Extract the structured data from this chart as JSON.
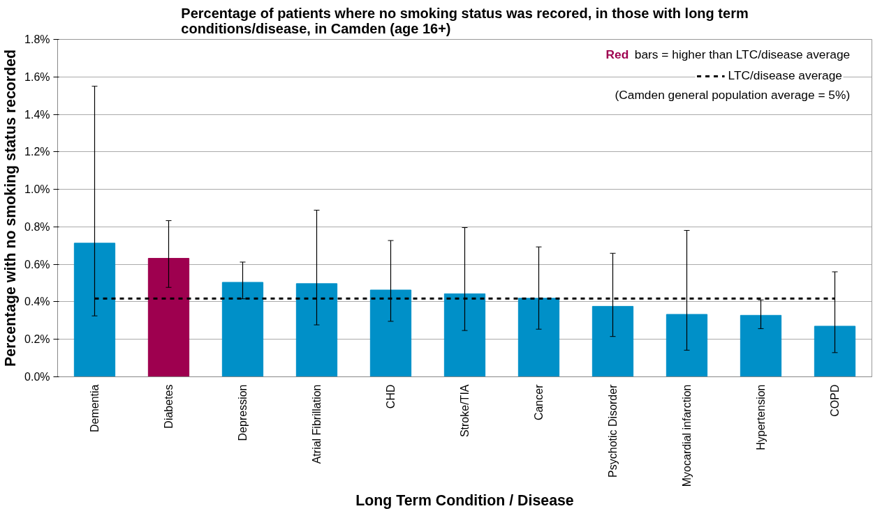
{
  "chart_data": {
    "type": "bar",
    "title": "Percentage of patients where no smoking status was recored, in those with long term conditions/disease, in Camden (age 16+)",
    "xlabel": "Long Term Condition / Disease",
    "ylabel": "Percentage with no smoking status recorded",
    "categories": [
      "Dementia",
      "Diabetes",
      "Depression",
      "Atrial Fibrillation",
      "CHD",
      "Stroke/TIA",
      "Cancer",
      "Psychotic Disorder",
      "Myocardial infarction",
      "Hypertension",
      "COPD"
    ],
    "values": [
      0.713,
      0.632,
      0.504,
      0.497,
      0.463,
      0.443,
      0.419,
      0.376,
      0.333,
      0.328,
      0.27
    ],
    "colors": [
      "#0090c8",
      "#9e004f",
      "#0090c8",
      "#0090c8",
      "#0090c8",
      "#0090c8",
      "#0090c8",
      "#0090c8",
      "#0090c8",
      "#0090c8",
      "#0090c8"
    ],
    "errors": [
      [
        0.325,
        1.55
      ],
      [
        0.477,
        0.833
      ],
      [
        0.416,
        0.612
      ],
      [
        0.277,
        0.889
      ],
      [
        0.296,
        0.727
      ],
      [
        0.247,
        0.796
      ],
      [
        0.254,
        0.693
      ],
      [
        0.215,
        0.659
      ],
      [
        0.142,
        0.781
      ],
      [
        0.257,
        0.41
      ],
      [
        0.129,
        0.56
      ]
    ],
    "ylim": [
      0,
      1.8
    ],
    "yticks": [
      {
        "value": 0,
        "label": "0.0%"
      },
      {
        "value": 0.2,
        "label": "0.2%"
      },
      {
        "value": 0.4,
        "label": "0.4%"
      },
      {
        "value": 0.6,
        "label": "0.6%"
      },
      {
        "value": 0.8,
        "label": "0.8%"
      },
      {
        "value": 1.0,
        "label": "1.0%"
      },
      {
        "value": 1.2,
        "label": "1.2%"
      },
      {
        "value": 1.4,
        "label": "1.4%"
      },
      {
        "value": 1.6,
        "label": "1.6%"
      },
      {
        "value": 1.8,
        "label": "1.8%"
      }
    ],
    "ref_lines": [
      {
        "axis": "y",
        "value": 0.417,
        "label": "LTC/disease average",
        "color": "#000000",
        "line_style": "dashed"
      }
    ],
    "annotations": [
      "Red bars = higher than LTC/disease average",
      "(Camden general population average  = 5%)"
    ],
    "grid": "y",
    "legend": "top right"
  }
}
